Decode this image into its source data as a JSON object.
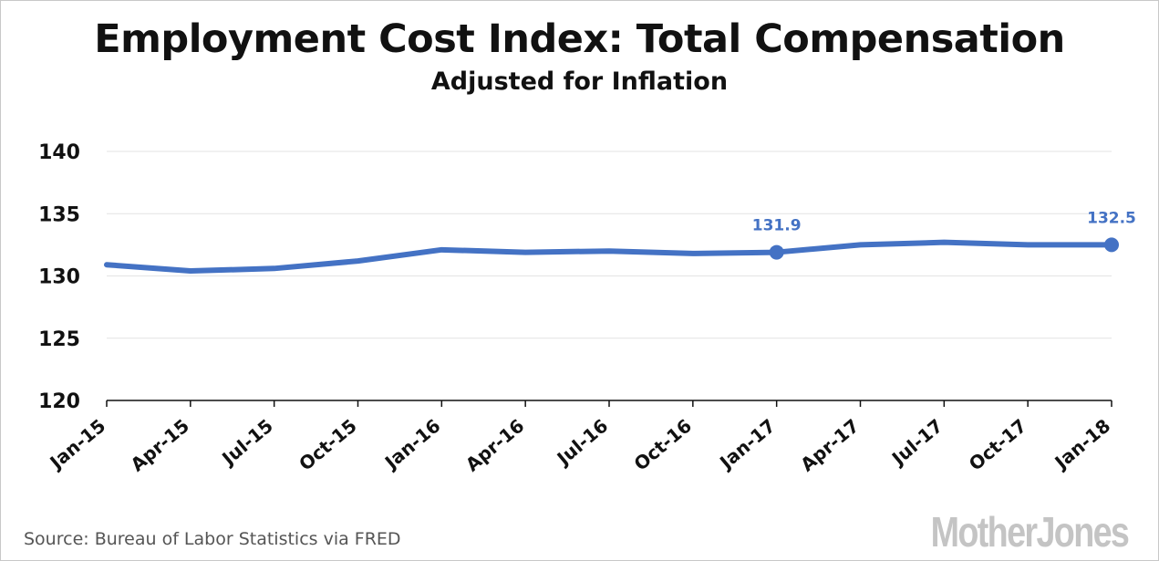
{
  "chart_data": {
    "type": "line",
    "title": "Employment Cost Index: Total Compensation",
    "subtitle": "Adjusted for Inflation",
    "categories": [
      "Jan-15",
      "Apr-15",
      "Jul-15",
      "Oct-15",
      "Jan-16",
      "Apr-16",
      "Jul-16",
      "Oct-16",
      "Jan-17",
      "Apr-17",
      "Jul-17",
      "Oct-17",
      "Jan-18"
    ],
    "series": [
      {
        "values": [
          130.9,
          130.4,
          130.6,
          131.2,
          132.1,
          131.9,
          132.0,
          131.8,
          131.9,
          132.5,
          132.7,
          132.5,
          132.5
        ]
      }
    ],
    "ylim": [
      120,
      140
    ],
    "yticks": [
      "120",
      "125",
      "130",
      "135",
      "140"
    ],
    "grid": true,
    "annotations": [
      {
        "category": "Jan-17",
        "value": 131.9,
        "label": "131.9"
      },
      {
        "category": "Jan-18",
        "value": 132.5,
        "label": "132.5"
      }
    ],
    "line_color": "#4472c4"
  },
  "source": "Source: Bureau of Labor Statistics via FRED",
  "logo": "MotherJones"
}
